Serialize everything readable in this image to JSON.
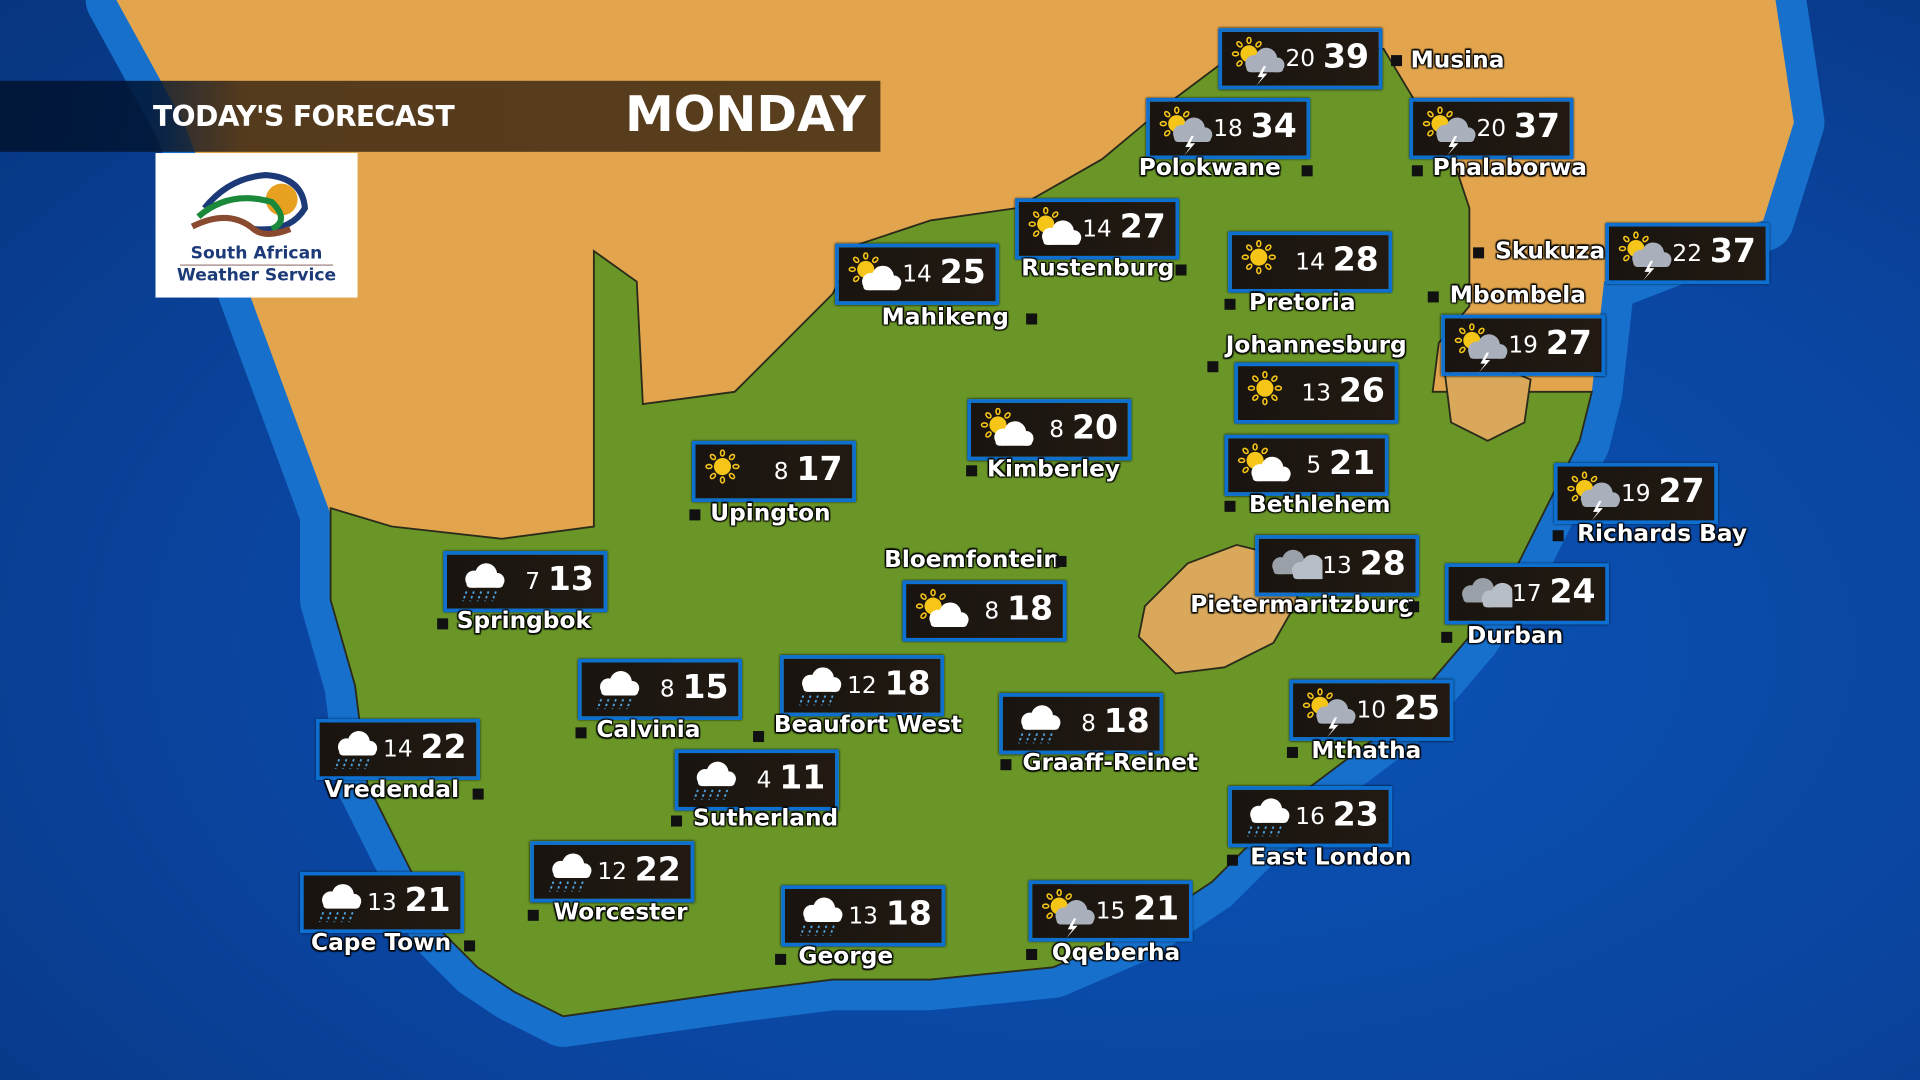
{
  "header": {
    "title": "TODAY'S FORECAST",
    "day": "MONDAY"
  },
  "logo": {
    "line1": "South African",
    "line2": "Weather Service"
  },
  "colors": {
    "box_border": "#0d6fd0",
    "ocean": "#0a45a0",
    "land_sa": "#6f9a2a",
    "land_neighbours": "#e5a850"
  },
  "cities": [
    {
      "name": "Musina",
      "min": "20",
      "max": "39",
      "icon": "thunderstorm-icon"
    },
    {
      "name": "Polokwane",
      "min": "18",
      "max": "34",
      "icon": "thunderstorm-icon"
    },
    {
      "name": "Phalaborwa",
      "min": "20",
      "max": "37",
      "icon": "thunderstorm-icon"
    },
    {
      "name": "Rustenburg",
      "min": "14",
      "max": "27",
      "icon": "partly-cloudy-icon"
    },
    {
      "name": "Mahikeng",
      "min": "14",
      "max": "25",
      "icon": "partly-cloudy-icon"
    },
    {
      "name": "Pretoria",
      "min": "14",
      "max": "28",
      "icon": "sunny-icon"
    },
    {
      "name": "Skukuza",
      "min": "22",
      "max": "37",
      "icon": "thunderstorm-icon"
    },
    {
      "name": "Mbombela",
      "min": "19",
      "max": "27",
      "icon": "thunderstorm-icon"
    },
    {
      "name": "Johannesburg",
      "min": "13",
      "max": "26",
      "icon": "sunny-icon"
    },
    {
      "name": "Kimberley",
      "min": "8",
      "max": "20",
      "icon": "partly-cloudy-icon"
    },
    {
      "name": "Upington",
      "min": "8",
      "max": "17",
      "icon": "sunny-icon"
    },
    {
      "name": "Bethlehem",
      "min": "5",
      "max": "21",
      "icon": "partly-cloudy-icon"
    },
    {
      "name": "Richards Bay",
      "min": "19",
      "max": "27",
      "icon": "thunderstorm-icon"
    },
    {
      "name": "Bloemfontein",
      "min": "8",
      "max": "18",
      "icon": "partly-cloudy-icon"
    },
    {
      "name": "Pietermaritzburg",
      "min": "13",
      "max": "28",
      "icon": "cloudy-icon"
    },
    {
      "name": "Durban",
      "min": "17",
      "max": "24",
      "icon": "cloudy-icon"
    },
    {
      "name": "Springbok",
      "min": "7",
      "max": "13",
      "icon": "rain-icon"
    },
    {
      "name": "Calvinia",
      "min": "8",
      "max": "15",
      "icon": "rain-icon"
    },
    {
      "name": "Beaufort West",
      "min": "12",
      "max": "18",
      "icon": "rain-icon"
    },
    {
      "name": "Graaff-Reinet",
      "min": "8",
      "max": "18",
      "icon": "rain-icon"
    },
    {
      "name": "Mthatha",
      "min": "10",
      "max": "25",
      "icon": "thunderstorm-icon"
    },
    {
      "name": "Vredendal",
      "min": "14",
      "max": "22",
      "icon": "rain-icon"
    },
    {
      "name": "Sutherland",
      "min": "4",
      "max": "11",
      "icon": "rain-icon"
    },
    {
      "name": "East London",
      "min": "16",
      "max": "23",
      "icon": "rain-icon"
    },
    {
      "name": "Worcester",
      "min": "12",
      "max": "22",
      "icon": "rain-icon"
    },
    {
      "name": "Cape Town",
      "min": "13",
      "max": "21",
      "icon": "rain-icon"
    },
    {
      "name": "George",
      "min": "13",
      "max": "18",
      "icon": "rain-icon"
    },
    {
      "name": "Qqeberha",
      "min": "15",
      "max": "21",
      "icon": "thunderstorm-icon"
    }
  ]
}
